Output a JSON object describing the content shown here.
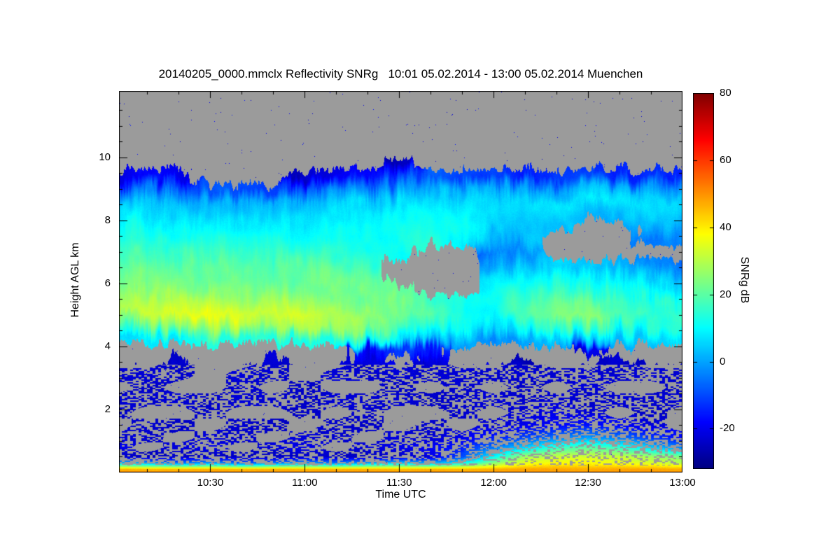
{
  "chart_data": {
    "type": "heatmap",
    "title": "20140205_0000.mmclx Reflectivity SNRg   10:01 05.02.2014 - 13:00 05.02.2014 Muenchen",
    "xlabel": "Time UTC",
    "ylabel": "Height AGL km",
    "no_data_color": "#9b9b9b",
    "x_axis": {
      "start_label": "10:01",
      "end_label": "13:00",
      "min_minutes": 1,
      "max_minutes": 180,
      "major_ticks": [
        {
          "minutes": 30,
          "label": "10:30"
        },
        {
          "minutes": 60,
          "label": "11:00"
        },
        {
          "minutes": 90,
          "label": "11:30"
        },
        {
          "minutes": 120,
          "label": "12:00"
        },
        {
          "minutes": 150,
          "label": "12:30"
        },
        {
          "minutes": 180,
          "label": "13:00"
        }
      ],
      "minor_tick_step_minutes": 10
    },
    "y_axis": {
      "min_km": 0,
      "max_km": 12.1,
      "major_ticks": [
        2,
        4,
        6,
        8,
        10
      ],
      "minor_tick_step_km": 0.5
    },
    "colorbar": {
      "label": "SNRg dB",
      "min_db": -32,
      "max_db": 80,
      "tick_labels": [
        80,
        60,
        40,
        20,
        0,
        -20
      ],
      "colormap": "jet"
    },
    "grid": {
      "time_minutes": [
        0,
        10,
        20,
        30,
        40,
        50,
        60,
        70,
        80,
        90,
        100,
        110,
        120,
        130,
        140,
        150,
        160,
        170,
        180
      ],
      "heights_km": [
        0.1,
        0.3,
        0.5,
        0.8,
        1.1,
        1.5,
        1.9,
        2.3,
        2.7,
        3.1,
        3.5,
        3.9,
        4.2,
        4.6,
        5.0,
        5.4,
        5.8,
        6.2,
        6.6,
        7.0,
        7.4,
        7.8,
        8.2,
        8.6,
        9.0,
        9.4,
        9.8,
        10.2
      ],
      "snr_db": [
        [
          47,
          46,
          46,
          47,
          46,
          47,
          46,
          47,
          47,
          46,
          47,
          46,
          47,
          48,
          48,
          47,
          48,
          48,
          47
        ],
        [
          5,
          0,
          -5,
          0,
          -8,
          -5,
          0,
          -5,
          0,
          5,
          0,
          10,
          25,
          35,
          38,
          38,
          36,
          34,
          30
        ],
        [
          -24,
          -25,
          -24,
          -25,
          -24,
          -25,
          -24,
          -24,
          -25,
          -24,
          -22,
          -10,
          10,
          28,
          32,
          33,
          32,
          28,
          24
        ],
        [
          -20,
          null,
          -22,
          -20,
          null,
          -22,
          -20,
          null,
          -22,
          -20,
          -18,
          -15,
          -5,
          5,
          15,
          20,
          15,
          5,
          -5
        ],
        [
          -22,
          -23,
          null,
          -22,
          -23,
          null,
          -22,
          -23,
          null,
          -22,
          -23,
          -20,
          -15,
          -10,
          -5,
          0,
          -5,
          -12,
          -18
        ],
        [
          null,
          -23,
          -24,
          null,
          -23,
          -24,
          null,
          -23,
          -24,
          null,
          -23,
          null,
          -22,
          -20,
          -18,
          -16,
          -18,
          -22,
          null
        ],
        [
          -24,
          null,
          null,
          -23,
          null,
          null,
          -24,
          null,
          -23,
          null,
          null,
          -23,
          null,
          -22,
          -20,
          -22,
          null,
          -24,
          null
        ],
        [
          -22,
          -23,
          -22,
          -24,
          -22,
          -23,
          -24,
          -22,
          -23,
          -22,
          -24,
          -23,
          -22,
          -23,
          -22,
          -24,
          -22,
          -23,
          -22
        ],
        [
          null,
          -24,
          null,
          null,
          -23,
          null,
          -24,
          null,
          null,
          -24,
          null,
          -23,
          null,
          -24,
          null,
          -22,
          null,
          null,
          -24
        ],
        [
          -23,
          -22,
          -23,
          null,
          -22,
          -23,
          null,
          -22,
          -23,
          -22,
          -23,
          -22,
          -23,
          -22,
          -23,
          -22,
          -23,
          -22,
          -23
        ],
        [
          null,
          null,
          -24,
          null,
          null,
          -23,
          null,
          null,
          -24,
          null,
          -23,
          null,
          null,
          -24,
          null,
          null,
          -23,
          null,
          null
        ],
        [
          null,
          null,
          null,
          null,
          null,
          null,
          null,
          null,
          -18,
          -12,
          -15,
          null,
          null,
          null,
          null,
          -20,
          null,
          null,
          null
        ],
        [
          8,
          10,
          9,
          11,
          12,
          13,
          14,
          13,
          12,
          8,
          4,
          0,
          -2,
          2,
          5,
          4,
          2,
          5,
          7
        ],
        [
          22,
          24,
          25,
          24,
          26,
          27,
          28,
          27,
          25,
          20,
          15,
          10,
          8,
          12,
          16,
          15,
          12,
          14,
          15
        ],
        [
          33,
          34,
          35,
          34,
          33,
          32,
          31,
          30,
          28,
          25,
          20,
          15,
          12,
          18,
          24,
          26,
          20,
          18,
          16
        ],
        [
          30,
          32,
          31,
          30,
          29,
          28,
          27,
          26,
          25,
          23,
          18,
          14,
          12,
          16,
          22,
          24,
          18,
          15,
          12
        ],
        [
          26,
          27,
          26,
          25,
          25,
          24,
          24,
          23,
          22,
          20,
          null,
          null,
          10,
          14,
          18,
          16,
          12,
          8,
          5
        ],
        [
          23,
          24,
          23,
          22,
          22,
          21,
          21,
          20,
          18,
          null,
          null,
          null,
          8,
          10,
          12,
          10,
          6,
          2,
          0
        ],
        [
          20,
          21,
          20,
          20,
          19,
          19,
          18,
          17,
          15,
          null,
          null,
          null,
          2,
          4,
          5,
          3,
          0,
          -5,
          -8
        ],
        [
          17,
          18,
          17,
          16,
          16,
          15,
          15,
          14,
          13,
          12,
          null,
          null,
          -5,
          0,
          null,
          null,
          null,
          null,
          null
        ],
        [
          14,
          15,
          14,
          13,
          13,
          12,
          12,
          12,
          13,
          14,
          12,
          8,
          0,
          4,
          null,
          null,
          null,
          -5,
          -3
        ],
        [
          10,
          12,
          11,
          10,
          10,
          9,
          9,
          10,
          12,
          13,
          12,
          10,
          5,
          6,
          2,
          null,
          null,
          0,
          2
        ],
        [
          6,
          8,
          7,
          6,
          6,
          5,
          6,
          8,
          10,
          12,
          11,
          10,
          8,
          6,
          5,
          3,
          2,
          4,
          5
        ],
        [
          2,
          4,
          3,
          2,
          2,
          1,
          2,
          4,
          6,
          8,
          8,
          7,
          6,
          5,
          6,
          7,
          5,
          6,
          7
        ],
        [
          -8,
          -4,
          -6,
          -8,
          -10,
          -12,
          -8,
          -5,
          -3,
          0,
          2,
          1,
          0,
          -2,
          0,
          2,
          1,
          0,
          -2
        ],
        [
          -22,
          -18,
          -20,
          null,
          null,
          null,
          -24,
          -20,
          -15,
          -10,
          -8,
          -10,
          -12,
          -15,
          -12,
          -10,
          -14,
          -12,
          -15
        ],
        [
          null,
          null,
          null,
          null,
          null,
          null,
          null,
          null,
          null,
          -24,
          null,
          null,
          null,
          null,
          null,
          null,
          null,
          null,
          null
        ],
        [
          null,
          null,
          null,
          null,
          null,
          null,
          null,
          null,
          null,
          null,
          null,
          null,
          null,
          null,
          null,
          null,
          null,
          null,
          null
        ]
      ]
    }
  }
}
